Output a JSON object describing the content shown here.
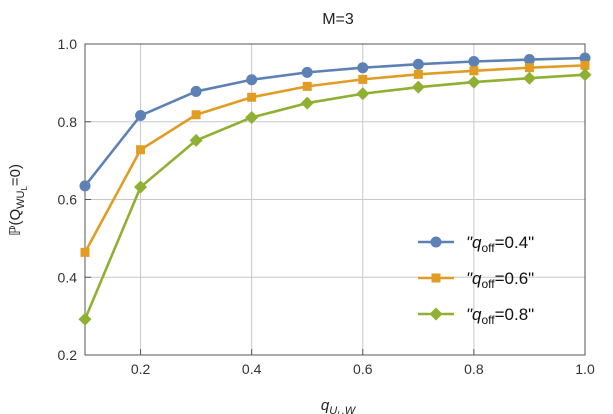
{
  "chart_data": {
    "type": "line",
    "title": "M=3",
    "xlabel": {
      "main": "q",
      "sub": "U",
      "subsub": "L",
      "tail": ",W"
    },
    "ylabel": {
      "pre": "ℙ(Q",
      "sub": "WU",
      "subsub": "L",
      "post": "=0)"
    },
    "xlim": [
      0.1,
      1.0
    ],
    "ylim": [
      0.2,
      1.0
    ],
    "xticks": [
      "0.2",
      "0.4",
      "0.6",
      "0.8",
      "1.0"
    ],
    "yticks": [
      "0.2",
      "0.4",
      "0.6",
      "0.8",
      "1.0"
    ],
    "grid": true,
    "legend_position": "bottom-right",
    "x": [
      0.1,
      0.2,
      0.3,
      0.4,
      0.5,
      0.6,
      0.7,
      0.8,
      0.9,
      1.0
    ],
    "series": [
      {
        "name": "\"q_off=0.4\"",
        "legend": {
          "pre": "\"q",
          "sub": "off",
          "post": "=0.4\""
        },
        "color": "#5E81B5",
        "marker": "circle",
        "values": [
          0.635,
          0.816,
          0.878,
          0.908,
          0.927,
          0.939,
          0.948,
          0.955,
          0.96,
          0.964
        ]
      },
      {
        "name": "\"q_off=0.6\"",
        "legend": {
          "pre": "\"q",
          "sub": "off",
          "post": "=0.6\""
        },
        "color": "#E19C24",
        "marker": "square",
        "values": [
          0.464,
          0.728,
          0.818,
          0.863,
          0.891,
          0.909,
          0.922,
          0.931,
          0.939,
          0.945
        ]
      },
      {
        "name": "\"q_off=0.8\"",
        "legend": {
          "pre": "\"q",
          "sub": "off",
          "post": "=0.8\""
        },
        "color": "#8FB032",
        "marker": "diamond",
        "values": [
          0.292,
          0.632,
          0.752,
          0.811,
          0.848,
          0.872,
          0.889,
          0.902,
          0.912,
          0.921
        ]
      }
    ]
  }
}
